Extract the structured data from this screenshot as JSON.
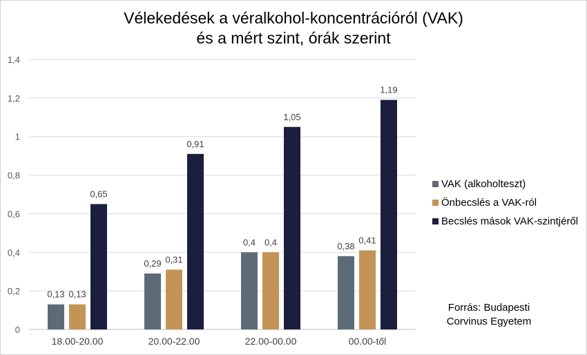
{
  "title_line1": "Vélekedések a véralkohol-koncentrációról (VAK)",
  "title_line2": "és a mért szint, órák szerint",
  "source_line1": "Forrás: Budapesti",
  "source_line2": "Corvinus Egyetem",
  "chart_data": {
    "type": "bar",
    "title": "Vélekedések a véralkohol-koncentrációról (VAK) és a mért szint, órák szerint",
    "categories": [
      "18.00-20.00",
      "20.00-22.00",
      "22.00-00.00",
      "00.00-től"
    ],
    "series": [
      {
        "name": "VAK (alkoholteszt)",
        "color": "#5d6b77",
        "values": [
          0.13,
          0.29,
          0.4,
          0.38
        ],
        "labels": [
          "0,13",
          "0,29",
          "0,4",
          "0,38"
        ]
      },
      {
        "name": "Önbecslés a VAK-ról",
        "color": "#c49456",
        "values": [
          0.13,
          0.31,
          0.4,
          0.41
        ],
        "labels": [
          "0,13",
          "0,31",
          "0,4",
          "0,41"
        ]
      },
      {
        "name": "Becslés mások VAK-szintjéről",
        "color": "#1b1f3d",
        "values": [
          0.65,
          0.91,
          1.05,
          1.19
        ],
        "labels": [
          "0,65",
          "0,91",
          "1,05",
          "1,19"
        ]
      }
    ],
    "yticks": [
      0,
      0.2,
      0.4,
      0.6,
      0.8,
      1,
      1.2,
      1.4
    ],
    "ytick_labels": [
      "0",
      "0,2",
      "0,4",
      "0,6",
      "0,8",
      "1",
      "1,2",
      "1,4"
    ],
    "ylim": [
      0,
      1.4
    ],
    "xlabel": "",
    "ylabel": "",
    "grid": true,
    "legend": "right"
  }
}
